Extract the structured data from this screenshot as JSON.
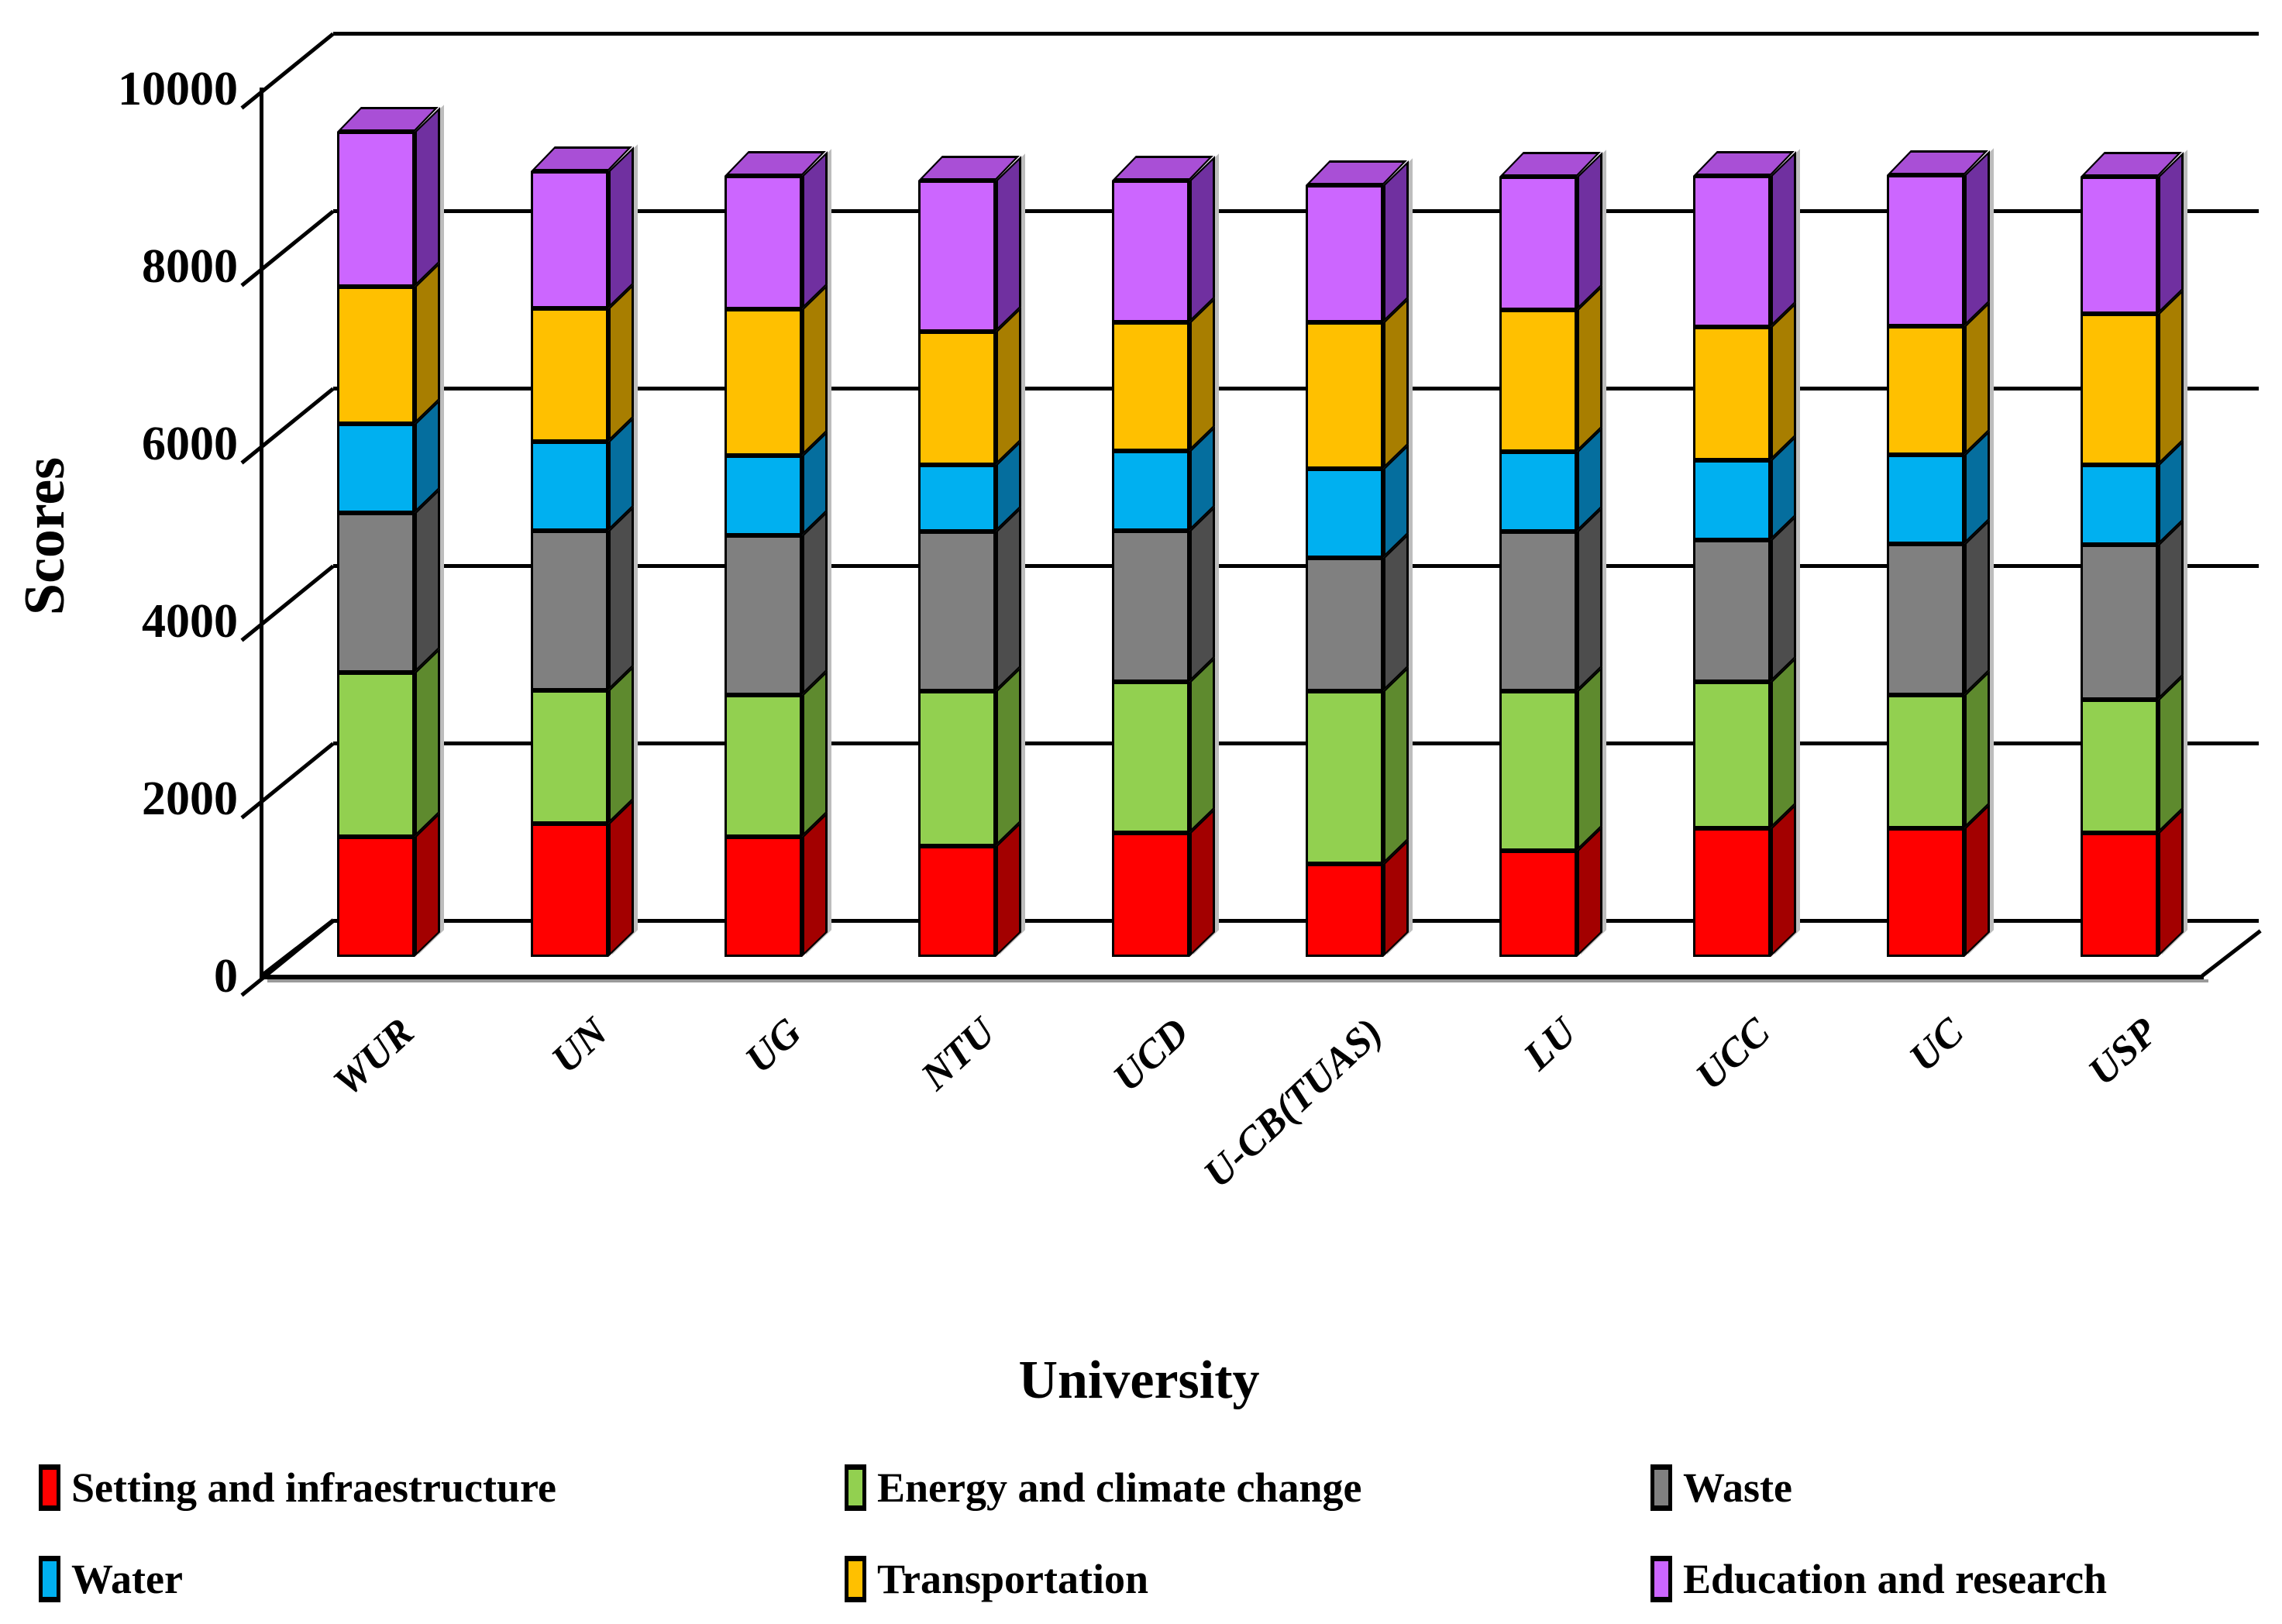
{
  "chart_data": {
    "type": "bar",
    "stacked": true,
    "projection": "3d",
    "title": "",
    "xlabel": "University",
    "ylabel": "Scores",
    "ylim": [
      0,
      10000
    ],
    "yticks": [
      0,
      2000,
      4000,
      6000,
      8000,
      10000
    ],
    "grid": true,
    "legend_position": "bottom",
    "categories": [
      "WUR",
      "UN",
      "UG",
      "NTU",
      "UCD",
      "U-CB(TUAS)",
      "LU",
      "UCC",
      "UC",
      "USP"
    ],
    "series": [
      {
        "name": "Setting and infraestructure",
        "color": "#FF0000",
        "side_color": "#A30000",
        "values": [
          1350,
          1500,
          1350,
          1250,
          1400,
          1050,
          1200,
          1450,
          1450,
          1400
        ]
      },
      {
        "name": "Energy and climate change",
        "color": "#92D050",
        "side_color": "#5E8A2E",
        "values": [
          1850,
          1500,
          1600,
          1750,
          1700,
          1950,
          1800,
          1650,
          1500,
          1500
        ]
      },
      {
        "name": "Waste",
        "color": "#808080",
        "side_color": "#4D4D4D",
        "values": [
          1800,
          1800,
          1800,
          1800,
          1700,
          1500,
          1800,
          1600,
          1700,
          1750
        ]
      },
      {
        "name": "Water",
        "color": "#00B0F0",
        "side_color": "#056E9E",
        "values": [
          1000,
          1000,
          900,
          750,
          900,
          1000,
          900,
          900,
          1000,
          900
        ]
      },
      {
        "name": "Transportation",
        "color": "#FFC000",
        "side_color": "#A87E00",
        "values": [
          1550,
          1500,
          1650,
          1500,
          1450,
          1650,
          1600,
          1500,
          1450,
          1700
        ]
      },
      {
        "name": "Education and research",
        "color": "#CC66FF",
        "side_color": "#7030A0",
        "values": [
          1750,
          1550,
          1500,
          1700,
          1600,
          1550,
          1500,
          1700,
          1700,
          1550
        ]
      }
    ],
    "totals": [
      9300,
      8850,
      8800,
      8750,
      8750,
      8700,
      8800,
      8800,
      8800,
      8800
    ],
    "top_face_color": "#A94FD6",
    "axis_color": "#000000",
    "background_color": "#FFFFFF"
  }
}
